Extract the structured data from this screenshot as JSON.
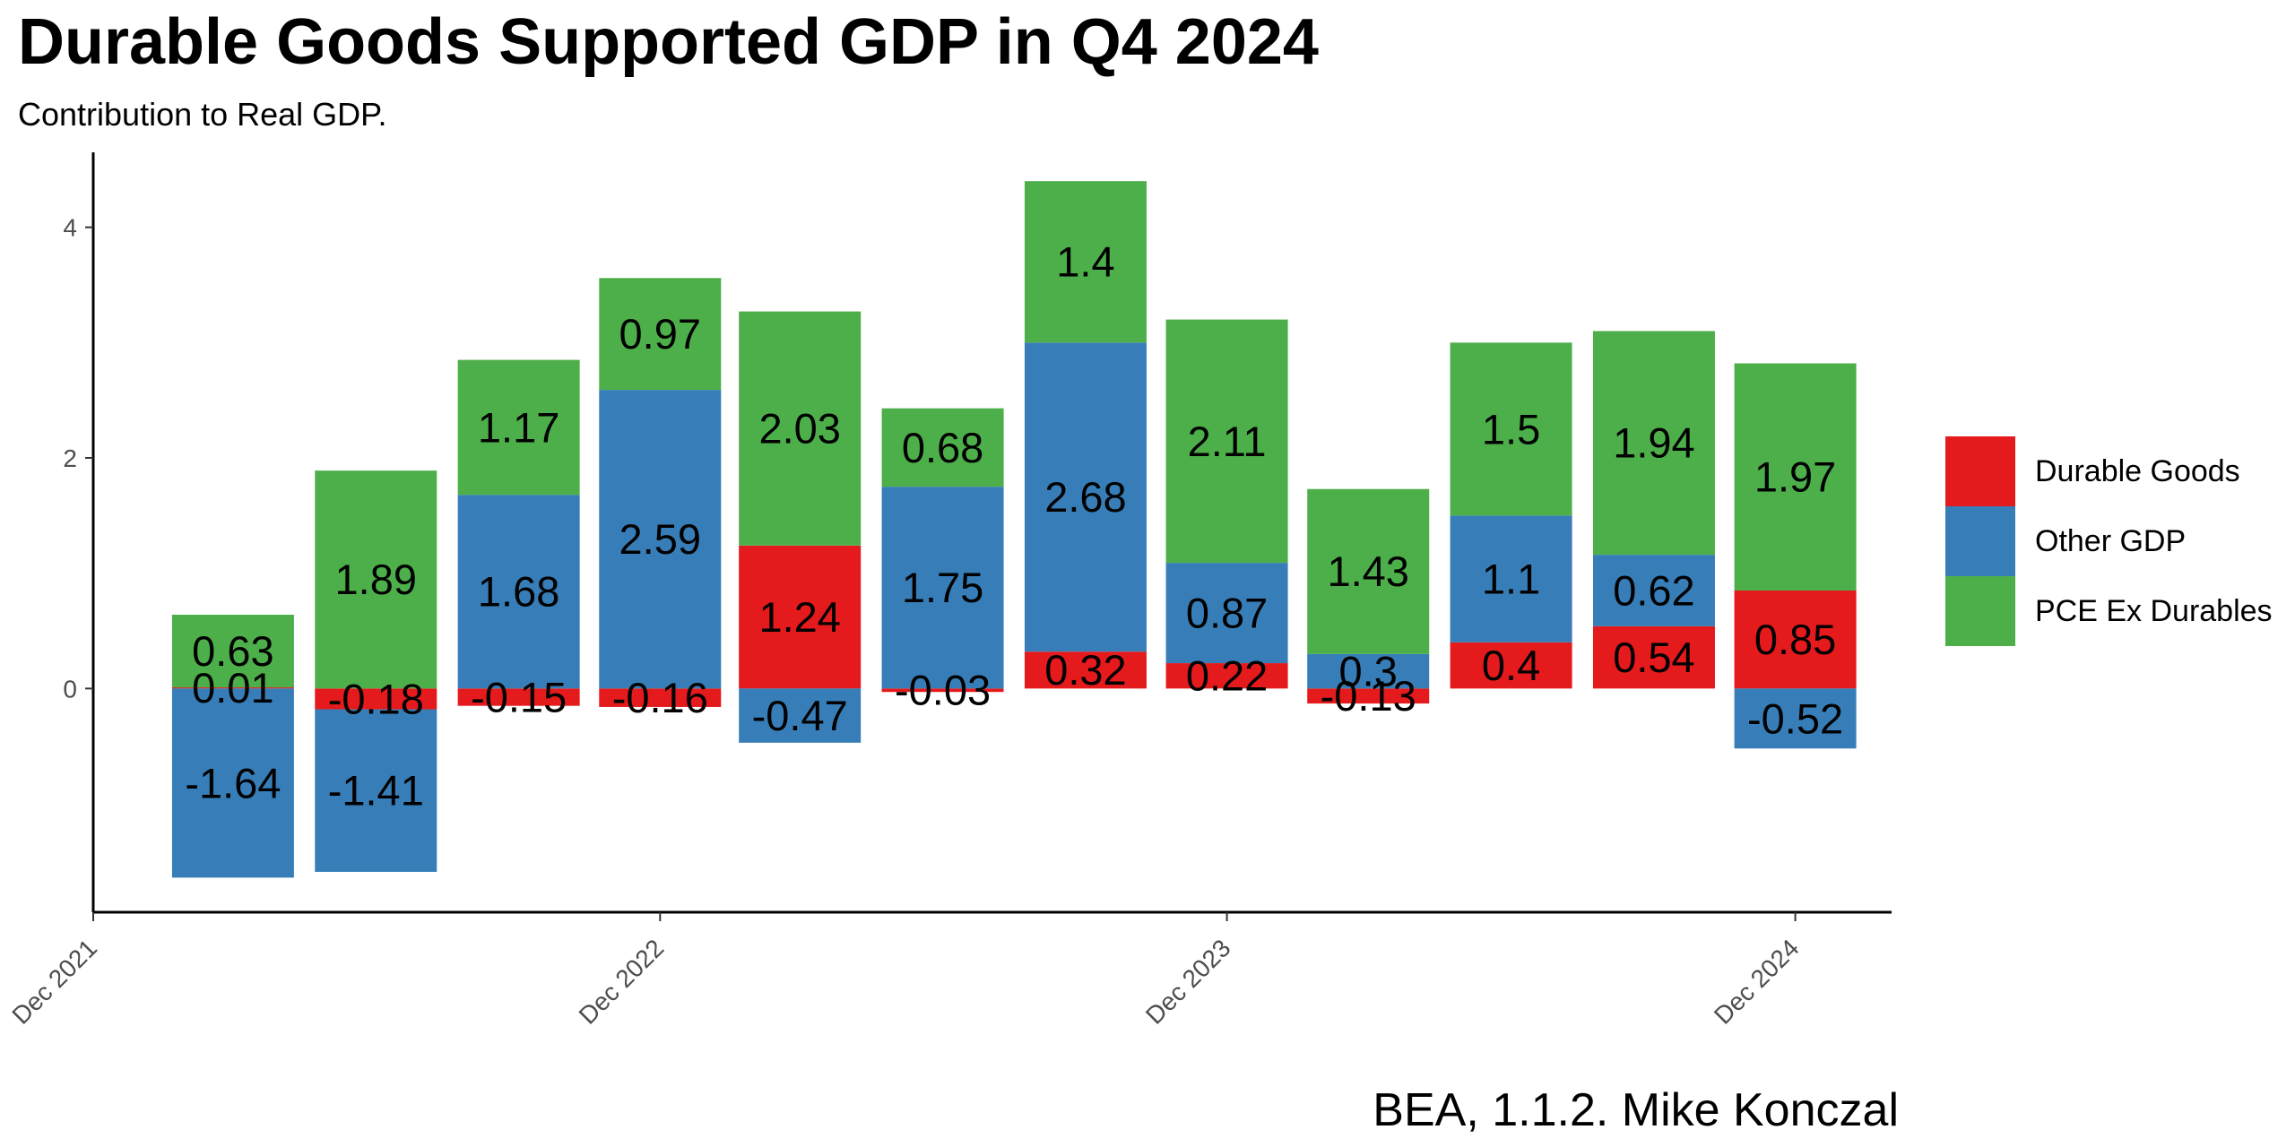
{
  "title": "Durable Goods Supported GDP in Q4 2024",
  "subtitle": "Contribution to Real GDP.",
  "caption": "BEA, 1.1.2. Mike Konczal",
  "legend": [
    {
      "label": "Durable Goods",
      "color": "#E41A1C"
    },
    {
      "label": "Other GDP",
      "color": "#377EB8"
    },
    {
      "label": "PCE Ex Durables",
      "color": "#4DAF4A"
    }
  ],
  "chart_data": {
    "type": "bar",
    "stacked": true,
    "x_axis": {
      "type": "date",
      "ticks": [
        "Dec 2021",
        "Dec 2022",
        "Dec 2023",
        "Dec 2024"
      ],
      "tick_dates": [
        "2021-12-01",
        "2022-12-01",
        "2023-12-01",
        "2024-12-01"
      ],
      "range": [
        "2021-12-01",
        "2025-02-01"
      ]
    },
    "y_axis": {
      "ticks": [
        0,
        2,
        4
      ],
      "range": [
        -1.94,
        4.65
      ]
    },
    "grid": false,
    "legend_position": "right",
    "x": [
      "2022-03-01",
      "2022-06-01",
      "2022-09-01",
      "2022-12-01",
      "2023-03-01",
      "2023-06-01",
      "2023-09-01",
      "2023-12-01",
      "2024-03-01",
      "2024-06-01",
      "2024-09-01",
      "2024-12-01"
    ],
    "series": [
      {
        "name": "Durable Goods",
        "color": "#E41A1C",
        "values": [
          0.01,
          -0.18,
          -0.15,
          -0.16,
          1.24,
          -0.03,
          0.32,
          0.22,
          -0.13,
          0.4,
          0.54,
          0.85
        ]
      },
      {
        "name": "Other GDP",
        "color": "#377EB8",
        "values": [
          -1.64,
          -1.41,
          1.68,
          2.59,
          -0.47,
          1.75,
          2.68,
          0.87,
          0.3,
          1.1,
          0.62,
          -0.52
        ]
      },
      {
        "name": "PCE Ex Durables",
        "color": "#4DAF4A",
        "values": [
          0.63,
          1.89,
          1.17,
          0.97,
          2.03,
          0.68,
          1.4,
          2.11,
          1.43,
          1.5,
          1.94,
          1.97
        ]
      }
    ]
  }
}
